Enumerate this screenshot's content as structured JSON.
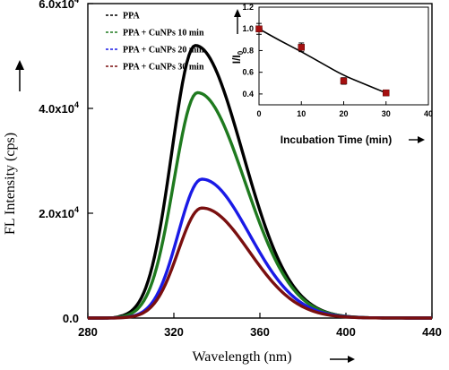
{
  "chart_data": [
    {
      "type": "line",
      "xlabel": "Wavelength (nm)",
      "ylabel": "FL Intensity (cps)",
      "xlim": [
        280,
        440
      ],
      "ylim": [
        0,
        60000
      ],
      "x_ticks": [
        280,
        320,
        360,
        400,
        440
      ],
      "x_tick_labels": [
        "280",
        "320",
        "360",
        "400",
        "440"
      ],
      "y_ticks": [
        0,
        20000,
        40000,
        60000
      ],
      "y_tick_labels": [
        "0.0",
        "2.0x10",
        "4.0x10",
        "6.0x10"
      ],
      "y_tick_exponents": [
        "",
        "4",
        "4",
        "4"
      ],
      "legend_position": "top-left",
      "series": [
        {
          "name": "PPA",
          "color": "#000000",
          "peak": 330,
          "amplitude": 52000
        },
        {
          "name": "PPA + CuNPs 10 min",
          "color": "#1f7a1f",
          "peak": 331,
          "amplitude": 43000
        },
        {
          "name": "PPA + CuNPs 20 min",
          "color": "#1a1ae6",
          "peak": 333,
          "amplitude": 26500
        },
        {
          "name": "PPA + CuNPs 30 min",
          "color": "#7a0f0f",
          "peak": 333,
          "amplitude": 21000
        }
      ],
      "curve_shape": {
        "sigma_left": 11,
        "sigma_right": 22,
        "onset": 287,
        "x_step": 1
      }
    },
    {
      "type": "scatter",
      "xlabel": "Incubation Time (min)",
      "ylabel": "I/I0",
      "xlim": [
        0,
        40
      ],
      "ylim": [
        0.3,
        1.2
      ],
      "x_ticks": [
        0,
        10,
        20,
        30,
        40
      ],
      "x_tick_labels": [
        "0",
        "10",
        "20",
        "30",
        "40"
      ],
      "y_ticks": [
        0.4,
        0.6,
        0.8,
        1.0,
        1.2
      ],
      "y_tick_labels": [
        "0.4",
        "0.6",
        "0.8",
        "1.0",
        "1.2"
      ],
      "points": [
        {
          "x": 0,
          "y": 1.0,
          "err": 0.05
        },
        {
          "x": 10,
          "y": 0.83,
          "err": 0.04
        },
        {
          "x": 20,
          "y": 0.52,
          "err": 0.03
        },
        {
          "x": 30,
          "y": 0.41,
          "err": 0.02
        }
      ],
      "fit": {
        "x": [
          0,
          5,
          10,
          15,
          20,
          25,
          30
        ],
        "y": [
          1.0,
          0.89,
          0.79,
          0.68,
          0.57,
          0.49,
          0.41
        ]
      },
      "marker_color": "#a50f0f"
    }
  ]
}
